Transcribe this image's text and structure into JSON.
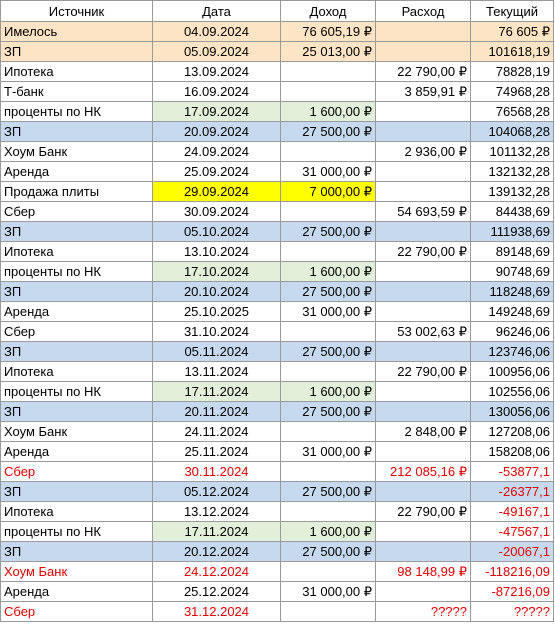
{
  "sheet": {
    "headers": [
      "Источник",
      "Дата",
      "Доход",
      "Расход",
      "Текущий"
    ],
    "colors": {
      "salary_row": "#c6d9ee",
      "opening_row": "#fce4c4",
      "interest_cell": "#e2efd9",
      "highlight_cell": "#ffff00",
      "negative_text": "#e00000"
    },
    "rows": [
      {
        "source": "Имелось",
        "date": "04.09.2024",
        "income": "76 605,19 ₽",
        "expense": "",
        "current": "76 605 ₽",
        "style": "orange"
      },
      {
        "source": "ЗП",
        "date": "05.09.2024",
        "income": "25 013,00 ₽",
        "expense": "",
        "current": "101618,19",
        "style": "orange"
      },
      {
        "source": "Ипотека",
        "date": "13.09.2024",
        "income": "",
        "expense": "22 790,00 ₽",
        "current": "78828,19",
        "style": ""
      },
      {
        "source": "Т-банк",
        "date": "16.09.2024",
        "income": "",
        "expense": "3 859,91 ₽",
        "current": "74968,28",
        "style": ""
      },
      {
        "source": "проценты по НК",
        "date": "17.09.2024",
        "income": "1 600,00 ₽",
        "expense": "",
        "current": "76568,28",
        "style": "green"
      },
      {
        "source": "ЗП",
        "date": "20.09.2024",
        "income": "27 500,00 ₽",
        "expense": "",
        "current": "104068,28",
        "style": "blue"
      },
      {
        "source": "Хоум Банк",
        "date": "24.09.2024",
        "income": "",
        "expense": "2 936,00 ₽",
        "current": "101132,28",
        "style": ""
      },
      {
        "source": "Аренда",
        "date": "25.09.2024",
        "income": "31 000,00 ₽",
        "expense": "",
        "current": "132132,28",
        "style": ""
      },
      {
        "source": "Продажа плиты",
        "date": "29.09.2024",
        "income": "7 000,00 ₽",
        "expense": "",
        "current": "139132,28",
        "style": "yellow"
      },
      {
        "source": "Сбер",
        "date": "30.09.2024",
        "income": "",
        "expense": "54 693,59 ₽",
        "current": "84438,69",
        "style": ""
      },
      {
        "source": "ЗП",
        "date": "05.10.2024",
        "income": "27 500,00 ₽",
        "expense": "",
        "current": "111938,69",
        "style": "blue"
      },
      {
        "source": "Ипотека",
        "date": "13.10.2024",
        "income": "",
        "expense": "22 790,00 ₽",
        "current": "89148,69",
        "style": ""
      },
      {
        "source": "проценты по НК",
        "date": "17.10.2024",
        "income": "1 600,00 ₽",
        "expense": "",
        "current": "90748,69",
        "style": "green"
      },
      {
        "source": "ЗП",
        "date": "20.10.2024",
        "income": "27 500,00 ₽",
        "expense": "",
        "current": "118248,69",
        "style": "blue"
      },
      {
        "source": "Аренда",
        "date": "25.10.2025",
        "income": "31 000,00 ₽",
        "expense": "",
        "current": "149248,69",
        "style": ""
      },
      {
        "source": "Сбер",
        "date": "31.10.2024",
        "income": "",
        "expense": "53 002,63 ₽",
        "current": "96246,06",
        "style": ""
      },
      {
        "source": "ЗП",
        "date": "05.11.2024",
        "income": "27 500,00 ₽",
        "expense": "",
        "current": "123746,06",
        "style": "blue"
      },
      {
        "source": "Ипотека",
        "date": "13.11.2024",
        "income": "",
        "expense": "22 790,00 ₽",
        "current": "100956,06",
        "style": ""
      },
      {
        "source": "проценты по НК",
        "date": "17.11.2024",
        "income": "1 600,00 ₽",
        "expense": "",
        "current": "102556,06",
        "style": "green"
      },
      {
        "source": "ЗП",
        "date": "20.11.2024",
        "income": "27 500,00 ₽",
        "expense": "",
        "current": "130056,06",
        "style": "blue"
      },
      {
        "source": "Хоум Банк",
        "date": "24.11.2024",
        "income": "",
        "expense": "2 848,00 ₽",
        "current": "127208,06",
        "style": ""
      },
      {
        "source": "Аренда",
        "date": "25.11.2024",
        "income": "31 000,00 ₽",
        "expense": "",
        "current": "158208,06",
        "style": ""
      },
      {
        "source": "Сбер",
        "date": "30.11.2024",
        "income": "",
        "expense": "212 085,16 ₽",
        "current": "-53877,1",
        "style": "",
        "red": true
      },
      {
        "source": "ЗП",
        "date": "05.12.2024",
        "income": "27 500,00 ₽",
        "expense": "",
        "current": "-26377,1",
        "style": "blue",
        "red_current": true
      },
      {
        "source": "Ипотека",
        "date": "13.12.2024",
        "income": "",
        "expense": "22 790,00 ₽",
        "current": "-49167,1",
        "style": "",
        "red_current": true
      },
      {
        "source": "проценты по НК",
        "date": "17.11.2024",
        "income": "1 600,00 ₽",
        "expense": "",
        "current": "-47567,1",
        "style": "green",
        "red_current": true
      },
      {
        "source": "ЗП",
        "date": "20.12.2024",
        "income": "27 500,00 ₽",
        "expense": "",
        "current": "-20067,1",
        "style": "blue",
        "red_current": true
      },
      {
        "source": "Хоум Банк",
        "date": "24.12.2024",
        "income": "",
        "expense": "98 148,99 ₽",
        "current": "-118216,09",
        "style": "",
        "red": true
      },
      {
        "source": "Аренда",
        "date": "25.12.2024",
        "income": "31 000,00 ₽",
        "expense": "",
        "current": "-87216,09",
        "style": "",
        "red_current": true
      },
      {
        "source": "Сбер",
        "date": "31.12.2024",
        "income": "",
        "expense": "?????",
        "current": "?????",
        "style": "",
        "red": true
      }
    ]
  }
}
